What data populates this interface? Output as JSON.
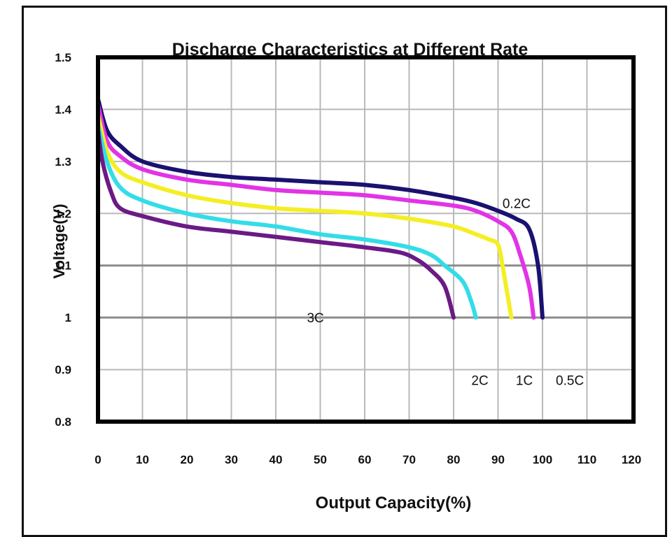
{
  "chart_data": {
    "type": "line",
    "title": "Discharge Characteristics at Different Rate",
    "xlabel": "Output Capacity(%)",
    "ylabel": "Voltage(V)",
    "xlim": [
      0,
      120
    ],
    "ylim": [
      0.8,
      1.5
    ],
    "x_ticks": [
      "0",
      "10",
      "20",
      "30",
      "40",
      "50",
      "60",
      "70",
      "80",
      "90",
      "100",
      "110",
      "120"
    ],
    "y_ticks": [
      "1.5",
      "1.4",
      "1.3",
      "1.2",
      "1.1",
      "1",
      "0.9",
      "0.8"
    ],
    "grid": true,
    "series": [
      {
        "name": "0.2C",
        "color": "#1a1170",
        "points": [
          [
            0,
            1.42
          ],
          [
            2,
            1.36
          ],
          [
            5,
            1.33
          ],
          [
            10,
            1.3
          ],
          [
            20,
            1.28
          ],
          [
            30,
            1.27
          ],
          [
            40,
            1.265
          ],
          [
            50,
            1.26
          ],
          [
            60,
            1.255
          ],
          [
            70,
            1.245
          ],
          [
            80,
            1.23
          ],
          [
            85,
            1.22
          ],
          [
            90,
            1.205
          ],
          [
            94,
            1.19
          ],
          [
            97,
            1.17
          ],
          [
            99,
            1.1
          ],
          [
            100,
            1.0
          ]
        ]
      },
      {
        "name": "0.5C",
        "color": "#e233e6",
        "points": [
          [
            0,
            1.41
          ],
          [
            2,
            1.34
          ],
          [
            5,
            1.31
          ],
          [
            10,
            1.285
          ],
          [
            20,
            1.265
          ],
          [
            30,
            1.255
          ],
          [
            40,
            1.245
          ],
          [
            50,
            1.24
          ],
          [
            60,
            1.235
          ],
          [
            70,
            1.225
          ],
          [
            80,
            1.215
          ],
          [
            85,
            1.205
          ],
          [
            90,
            1.185
          ],
          [
            93,
            1.165
          ],
          [
            95,
            1.12
          ],
          [
            97,
            1.06
          ],
          [
            98,
            1.0
          ]
        ]
      },
      {
        "name": "1C",
        "color": "#f5ee24",
        "points": [
          [
            0,
            1.39
          ],
          [
            2,
            1.32
          ],
          [
            5,
            1.28
          ],
          [
            10,
            1.26
          ],
          [
            20,
            1.235
          ],
          [
            30,
            1.22
          ],
          [
            40,
            1.21
          ],
          [
            50,
            1.205
          ],
          [
            60,
            1.2
          ],
          [
            70,
            1.19
          ],
          [
            80,
            1.175
          ],
          [
            85,
            1.16
          ],
          [
            88,
            1.15
          ],
          [
            90,
            1.14
          ],
          [
            91,
            1.1
          ],
          [
            92,
            1.05
          ],
          [
            93,
            1.0
          ]
        ]
      },
      {
        "name": "2C",
        "color": "#33dde8",
        "points": [
          [
            0,
            1.37
          ],
          [
            2,
            1.3
          ],
          [
            5,
            1.25
          ],
          [
            10,
            1.225
          ],
          [
            20,
            1.2
          ],
          [
            30,
            1.185
          ],
          [
            40,
            1.175
          ],
          [
            50,
            1.16
          ],
          [
            60,
            1.15
          ],
          [
            70,
            1.135
          ],
          [
            75,
            1.12
          ],
          [
            78,
            1.1
          ],
          [
            82,
            1.07
          ],
          [
            84,
            1.03
          ],
          [
            85,
            1.0
          ]
        ]
      },
      {
        "name": "3C",
        "color": "#6b1a86",
        "points": [
          [
            0,
            1.36
          ],
          [
            1,
            1.3
          ],
          [
            3,
            1.24
          ],
          [
            5,
            1.21
          ],
          [
            10,
            1.195
          ],
          [
            20,
            1.175
          ],
          [
            30,
            1.165
          ],
          [
            40,
            1.155
          ],
          [
            50,
            1.145
          ],
          [
            60,
            1.135
          ],
          [
            68,
            1.125
          ],
          [
            72,
            1.11
          ],
          [
            75,
            1.09
          ],
          [
            78,
            1.06
          ],
          [
            80,
            1.0
          ]
        ]
      }
    ],
    "annotations": [
      {
        "text": "0.2C",
        "x": 91,
        "y": 1.22
      },
      {
        "text": "3C",
        "x": 47,
        "y": 1.0
      },
      {
        "text": "2C",
        "x": 84,
        "y": 0.88
      },
      {
        "text": "1C",
        "x": 94,
        "y": 0.88
      },
      {
        "text": "0.5C",
        "x": 103,
        "y": 0.88
      }
    ]
  }
}
